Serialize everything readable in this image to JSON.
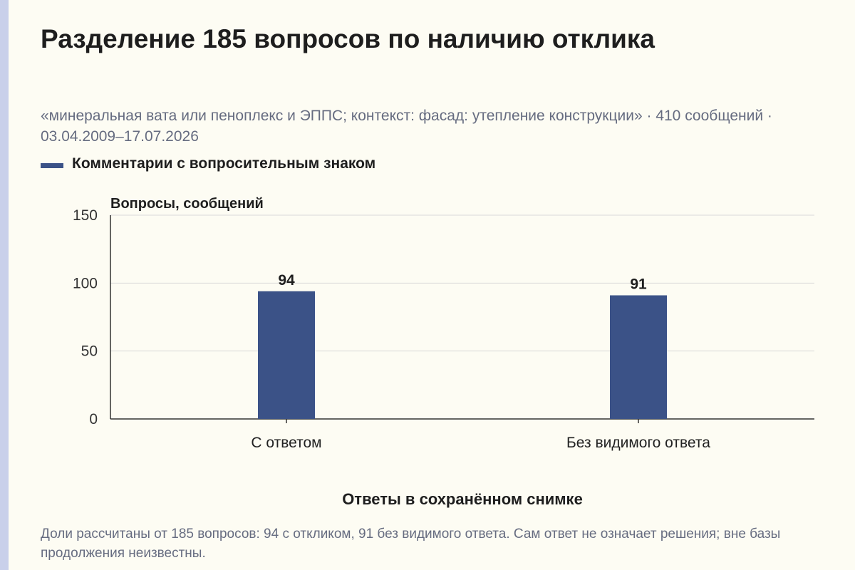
{
  "chart_data": {
    "type": "bar",
    "title": "Разделение 185 вопросов по наличию отклика",
    "subtitle": "«минеральная вата или пеноплекс и ЭППС; контекст: фасад: утепление конструкции» · 410 сообщений · 03.04.2009–17.07.2026",
    "categories": [
      "С ответом",
      "Без видимого ответа"
    ],
    "series": [
      {
        "name": "Комментарии с вопросительным знаком",
        "values": [
          94,
          91
        ]
      }
    ],
    "ylabel": "Вопросы, сообщений",
    "xlabel": "Ответы в сохранённом снимке",
    "ylim": [
      0,
      150
    ],
    "yticks": [
      0,
      50,
      100,
      150
    ],
    "grid": true,
    "legend": "top-left",
    "colors": {
      "bar": "#3b5287",
      "grid": "#d9d9d9",
      "axis": "#333333"
    }
  },
  "footnote": "Доли рассчитаны от 185 вопросов: 94 с откликом, 91 без видимого ответа. Сам ответ не означает решения; вне базы продолжения неизвестны."
}
